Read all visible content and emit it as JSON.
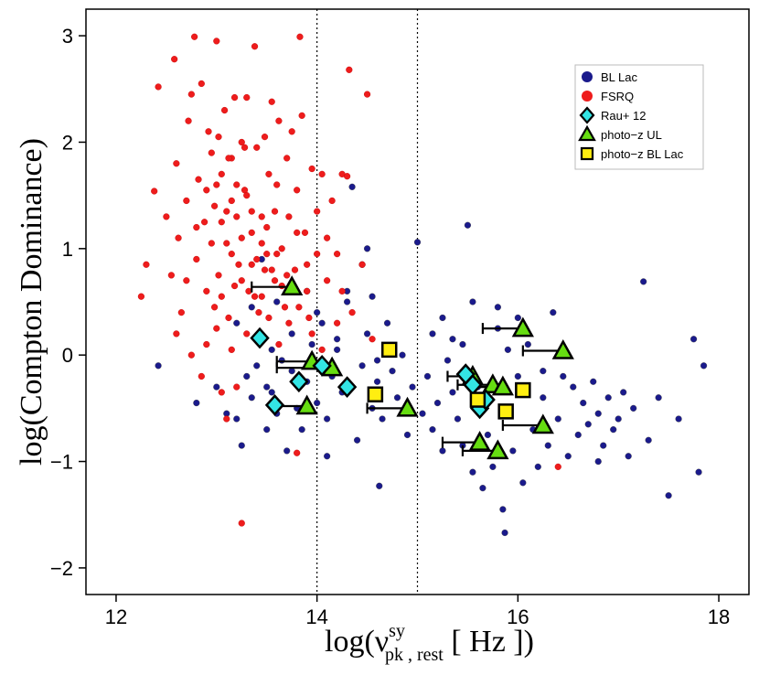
{
  "chart_data": {
    "type": "scatter",
    "title": "",
    "xlabel": "log(ν_pk,rest^sy [ Hz ])",
    "xlabel_parts": {
      "prefix": "log(",
      "nu": "ν",
      "sup": "sy",
      "sub": "pk , rest",
      "units": " [ Hz ])"
    },
    "ylabel": "log(Compton Dominance)",
    "xlim": [
      11.7,
      18.3
    ],
    "ylim": [
      -2.25,
      3.25
    ],
    "x_ticks": [
      12,
      14,
      16,
      18
    ],
    "x_tick_labels": [
      "12",
      "14",
      "16",
      "18"
    ],
    "y_ticks": [
      -2,
      -1,
      0,
      1,
      2,
      3
    ],
    "y_tick_labels": [
      "−2",
      "−1",
      "0",
      "1",
      "2",
      "3"
    ],
    "vlines": [
      14,
      15
    ],
    "legend": {
      "position": "top-right",
      "entries": [
        "BL Lac",
        "FSRQ",
        "Rau+ 12",
        "photo−z UL",
        "photo−z BL Lac"
      ]
    },
    "colors": {
      "bl_lac": "#1a1a8c",
      "fsrq": "#ee1c1c",
      "rau12": "#33e5e5",
      "photoz_ul": "#66dd11",
      "photoz_bllac": "#ffee11"
    },
    "series": [
      {
        "name": "BL Lac",
        "marker": "circle",
        "points": [
          [
            12.42,
            -0.1
          ],
          [
            12.8,
            -0.45
          ],
          [
            13.0,
            -0.3
          ],
          [
            13.1,
            -0.55
          ],
          [
            13.2,
            -0.6
          ],
          [
            13.25,
            -0.85
          ],
          [
            13.3,
            -0.2
          ],
          [
            13.35,
            -0.4
          ],
          [
            13.4,
            -0.1
          ],
          [
            13.5,
            -0.3
          ],
          [
            13.5,
            -0.7
          ],
          [
            13.55,
            -0.35
          ],
          [
            13.6,
            -0.55
          ],
          [
            13.7,
            -0.9
          ],
          [
            13.75,
            -0.15
          ],
          [
            13.8,
            -0.5
          ],
          [
            13.85,
            -0.7
          ],
          [
            13.9,
            -0.25
          ],
          [
            13.95,
            0.1
          ],
          [
            14.0,
            -0.45
          ],
          [
            14.05,
            0.3
          ],
          [
            14.1,
            -0.6
          ],
          [
            14.15,
            -0.2
          ],
          [
            14.2,
            0.05
          ],
          [
            14.25,
            -0.35
          ],
          [
            14.3,
            0.5
          ],
          [
            14.35,
            1.58
          ],
          [
            14.4,
            -0.8
          ],
          [
            14.45,
            -0.1
          ],
          [
            14.5,
            0.2
          ],
          [
            14.55,
            -0.5
          ],
          [
            14.6,
            -0.25
          ],
          [
            14.62,
            -1.23
          ],
          [
            14.65,
            -0.6
          ],
          [
            14.7,
            0.3
          ],
          [
            14.75,
            -0.15
          ],
          [
            14.8,
            -0.4
          ],
          [
            14.85,
            0.0
          ],
          [
            14.9,
            -0.75
          ],
          [
            14.95,
            -0.3
          ],
          [
            15.0,
            1.06
          ],
          [
            15.05,
            -0.55
          ],
          [
            15.1,
            -0.2
          ],
          [
            15.15,
            0.2
          ],
          [
            15.2,
            -0.45
          ],
          [
            15.25,
            -0.9
          ],
          [
            15.3,
            -0.05
          ],
          [
            15.35,
            -0.35
          ],
          [
            15.4,
            -0.6
          ],
          [
            15.45,
            0.1
          ],
          [
            15.5,
            1.22
          ],
          [
            15.55,
            -1.1
          ],
          [
            15.6,
            -0.3
          ],
          [
            15.65,
            -1.25
          ],
          [
            15.7,
            -0.75
          ],
          [
            15.75,
            -1.05
          ],
          [
            15.8,
            0.25
          ],
          [
            15.85,
            -1.45
          ],
          [
            15.87,
            -1.67
          ],
          [
            15.9,
            -0.55
          ],
          [
            15.95,
            -0.9
          ],
          [
            16.0,
            -0.2
          ],
          [
            16.05,
            -1.2
          ],
          [
            16.1,
            0.1
          ],
          [
            16.15,
            -0.7
          ],
          [
            16.2,
            -1.05
          ],
          [
            16.25,
            -0.4
          ],
          [
            16.3,
            -0.85
          ],
          [
            16.35,
            0.4
          ],
          [
            16.4,
            -0.6
          ],
          [
            16.45,
            -0.2
          ],
          [
            16.5,
            -0.95
          ],
          [
            16.55,
            -0.3
          ],
          [
            16.6,
            -0.75
          ],
          [
            16.65,
            -0.45
          ],
          [
            16.7,
            -0.65
          ],
          [
            16.75,
            -0.25
          ],
          [
            16.8,
            -0.55
          ],
          [
            16.85,
            -0.85
          ],
          [
            16.9,
            -0.4
          ],
          [
            16.95,
            -0.7
          ],
          [
            17.0,
            -0.6
          ],
          [
            17.05,
            -0.35
          ],
          [
            17.1,
            -0.95
          ],
          [
            17.15,
            -0.5
          ],
          [
            17.25,
            0.69
          ],
          [
            17.3,
            -0.8
          ],
          [
            17.4,
            -0.4
          ],
          [
            17.5,
            -1.32
          ],
          [
            17.6,
            -0.6
          ],
          [
            17.75,
            0.15
          ],
          [
            17.8,
            -1.1
          ],
          [
            17.85,
            -0.1
          ],
          [
            14.1,
            -0.95
          ],
          [
            14.6,
            -0.05
          ],
          [
            15.15,
            -0.7
          ],
          [
            15.45,
            -0.85
          ],
          [
            15.7,
            -0.4
          ],
          [
            16.25,
            -0.15
          ],
          [
            16.8,
            -1.0
          ],
          [
            13.45,
            0.9
          ],
          [
            13.6,
            0.5
          ],
          [
            13.75,
            0.2
          ],
          [
            14.0,
            0.4
          ],
          [
            14.3,
            0.6
          ],
          [
            14.45,
            0.85
          ],
          [
            14.5,
            1.0
          ],
          [
            15.25,
            0.35
          ],
          [
            15.55,
            0.5
          ],
          [
            15.8,
            0.45
          ],
          [
            16.0,
            0.35
          ],
          [
            13.2,
            0.3
          ],
          [
            13.35,
            0.45
          ],
          [
            13.55,
            0.05
          ],
          [
            13.65,
            -0.05
          ],
          [
            13.9,
            0.6
          ],
          [
            14.2,
            0.15
          ],
          [
            14.55,
            0.55
          ],
          [
            15.35,
            0.15
          ],
          [
            15.9,
            0.05
          ]
        ]
      },
      {
        "name": "FSRQ",
        "marker": "circle",
        "points": [
          [
            12.25,
            0.55
          ],
          [
            12.3,
            0.85
          ],
          [
            12.38,
            1.54
          ],
          [
            12.42,
            2.52
          ],
          [
            12.5,
            1.3
          ],
          [
            12.55,
            0.75
          ],
          [
            12.58,
            2.78
          ],
          [
            12.6,
            1.8
          ],
          [
            12.62,
            1.1
          ],
          [
            12.65,
            0.4
          ],
          [
            12.7,
            1.45
          ],
          [
            12.72,
            2.2
          ],
          [
            12.75,
            2.45
          ],
          [
            12.78,
            2.99
          ],
          [
            12.8,
            0.9
          ],
          [
            12.82,
            1.65
          ],
          [
            12.85,
            2.55
          ],
          [
            12.88,
            1.25
          ],
          [
            12.9,
            0.6
          ],
          [
            12.92,
            2.1
          ],
          [
            12.95,
            1.9
          ],
          [
            12.98,
            1.4
          ],
          [
            13.0,
            2.95
          ],
          [
            13.02,
            0.75
          ],
          [
            13.05,
            1.7
          ],
          [
            13.08,
            2.3
          ],
          [
            13.1,
            1.05
          ],
          [
            13.12,
            0.35
          ],
          [
            13.15,
            1.85
          ],
          [
            13.18,
            2.42
          ],
          [
            13.2,
            1.3
          ],
          [
            13.22,
            0.85
          ],
          [
            13.25,
            2.0
          ],
          [
            13.28,
            1.55
          ],
          [
            13.3,
            2.42
          ],
          [
            13.32,
            0.6
          ],
          [
            13.35,
            1.15
          ],
          [
            13.38,
            2.9
          ],
          [
            13.4,
            1.95
          ],
          [
            13.42,
            0.4
          ],
          [
            13.45,
            1.3
          ],
          [
            13.48,
            2.05
          ],
          [
            13.5,
            0.95
          ],
          [
            13.52,
            1.7
          ],
          [
            13.55,
            2.38
          ],
          [
            13.58,
            0.7
          ],
          [
            13.6,
            1.6
          ],
          [
            13.62,
            2.2
          ],
          [
            13.65,
            1.0
          ],
          [
            13.68,
            0.45
          ],
          [
            13.7,
            1.85
          ],
          [
            13.72,
            1.3
          ],
          [
            13.75,
            2.1
          ],
          [
            13.78,
            0.8
          ],
          [
            13.8,
            1.55
          ],
          [
            13.85,
            2.25
          ],
          [
            13.88,
            1.15
          ],
          [
            13.9,
            0.6
          ],
          [
            13.95,
            1.75
          ],
          [
            14.0,
            0.95
          ],
          [
            14.05,
            1.7
          ],
          [
            14.1,
            0.7
          ],
          [
            14.15,
            1.45
          ],
          [
            14.2,
            0.3
          ],
          [
            14.25,
            1.7
          ],
          [
            14.3,
            1.68
          ],
          [
            14.32,
            2.68
          ],
          [
            14.35,
            0.4
          ],
          [
            14.45,
            0.85
          ],
          [
            14.5,
            2.45
          ],
          [
            14.55,
            0.15
          ],
          [
            13.25,
            -1.58
          ],
          [
            13.8,
            -0.92
          ],
          [
            13.83,
            2.99
          ],
          [
            13.05,
            -0.35
          ],
          [
            13.1,
            -0.6
          ],
          [
            12.9,
            0.1
          ],
          [
            13.0,
            0.25
          ],
          [
            12.85,
            -0.2
          ],
          [
            12.95,
            1.05
          ],
          [
            13.05,
            0.55
          ],
          [
            13.15,
            0.95
          ],
          [
            13.25,
            0.7
          ],
          [
            13.35,
            0.85
          ],
          [
            13.45,
            0.55
          ],
          [
            13.55,
            0.8
          ],
          [
            13.65,
            0.65
          ],
          [
            13.15,
            0.05
          ],
          [
            13.2,
            -0.3
          ],
          [
            13.3,
            0.2
          ],
          [
            13.05,
            1.25
          ],
          [
            13.15,
            1.45
          ],
          [
            13.25,
            1.1
          ],
          [
            13.35,
            1.35
          ],
          [
            13.45,
            1.05
          ],
          [
            12.7,
            0.7
          ],
          [
            12.8,
            1.2
          ],
          [
            12.9,
            1.55
          ],
          [
            13.0,
            1.6
          ],
          [
            13.1,
            1.35
          ],
          [
            13.2,
            1.6
          ],
          [
            13.3,
            1.5
          ],
          [
            13.4,
            0.9
          ],
          [
            13.5,
            1.2
          ],
          [
            13.6,
            0.95
          ],
          [
            13.7,
            0.75
          ],
          [
            13.8,
            1.15
          ],
          [
            13.9,
            0.85
          ],
          [
            14.0,
            1.35
          ],
          [
            14.1,
            1.1
          ],
          [
            14.2,
            0.95
          ],
          [
            14.25,
            0.6
          ],
          [
            12.6,
            0.2
          ],
          [
            12.75,
            0.0
          ],
          [
            13.95,
            0.2
          ],
          [
            14.05,
            0.05
          ],
          [
            16.4,
            -1.05
          ],
          [
            13.12,
            1.85
          ],
          [
            13.28,
            1.95
          ],
          [
            12.98,
            0.45
          ],
          [
            13.52,
            0.35
          ],
          [
            13.62,
            0.1
          ],
          [
            13.72,
            0.3
          ],
          [
            13.82,
            0.45
          ],
          [
            13.92,
            0.35
          ],
          [
            13.02,
            2.05
          ],
          [
            13.18,
            0.65
          ],
          [
            13.38,
            0.55
          ],
          [
            13.48,
            0.8
          ],
          [
            13.58,
            1.35
          ]
        ]
      },
      {
        "name": "Rau+ 12",
        "marker": "diamond",
        "points": [
          [
            13.43,
            0.16
          ],
          [
            13.58,
            -0.47
          ],
          [
            13.82,
            -0.25
          ],
          [
            14.05,
            -0.1
          ],
          [
            14.3,
            -0.3
          ],
          [
            15.48,
            -0.18
          ],
          [
            15.55,
            -0.28
          ],
          [
            15.62,
            -0.5
          ],
          [
            15.68,
            -0.42
          ]
        ]
      },
      {
        "name": "photo−z UL",
        "marker": "triangle",
        "points": [
          [
            13.75,
            0.64
          ],
          [
            13.9,
            -0.48
          ],
          [
            13.95,
            -0.06
          ],
          [
            14.15,
            -0.12
          ],
          [
            14.9,
            -0.5
          ],
          [
            15.55,
            -0.2
          ],
          [
            15.62,
            -0.82
          ],
          [
            15.75,
            -0.28
          ],
          [
            15.8,
            -0.9
          ],
          [
            15.85,
            -0.3
          ],
          [
            16.05,
            0.25
          ],
          [
            16.25,
            -0.66
          ],
          [
            16.45,
            0.04
          ]
        ],
        "upper_limit_xmin": [
          13.35,
          13.55,
          13.6,
          13.6,
          14.5,
          15.3,
          15.25,
          15.4,
          15.45,
          15.55,
          15.65,
          15.85,
          16.05
        ]
      },
      {
        "name": "photo−z BL Lac",
        "marker": "square",
        "points": [
          [
            14.58,
            -0.37
          ],
          [
            14.72,
            0.05
          ],
          [
            15.6,
            -0.42
          ],
          [
            15.88,
            -0.53
          ],
          [
            16.05,
            -0.33
          ]
        ]
      }
    ]
  }
}
